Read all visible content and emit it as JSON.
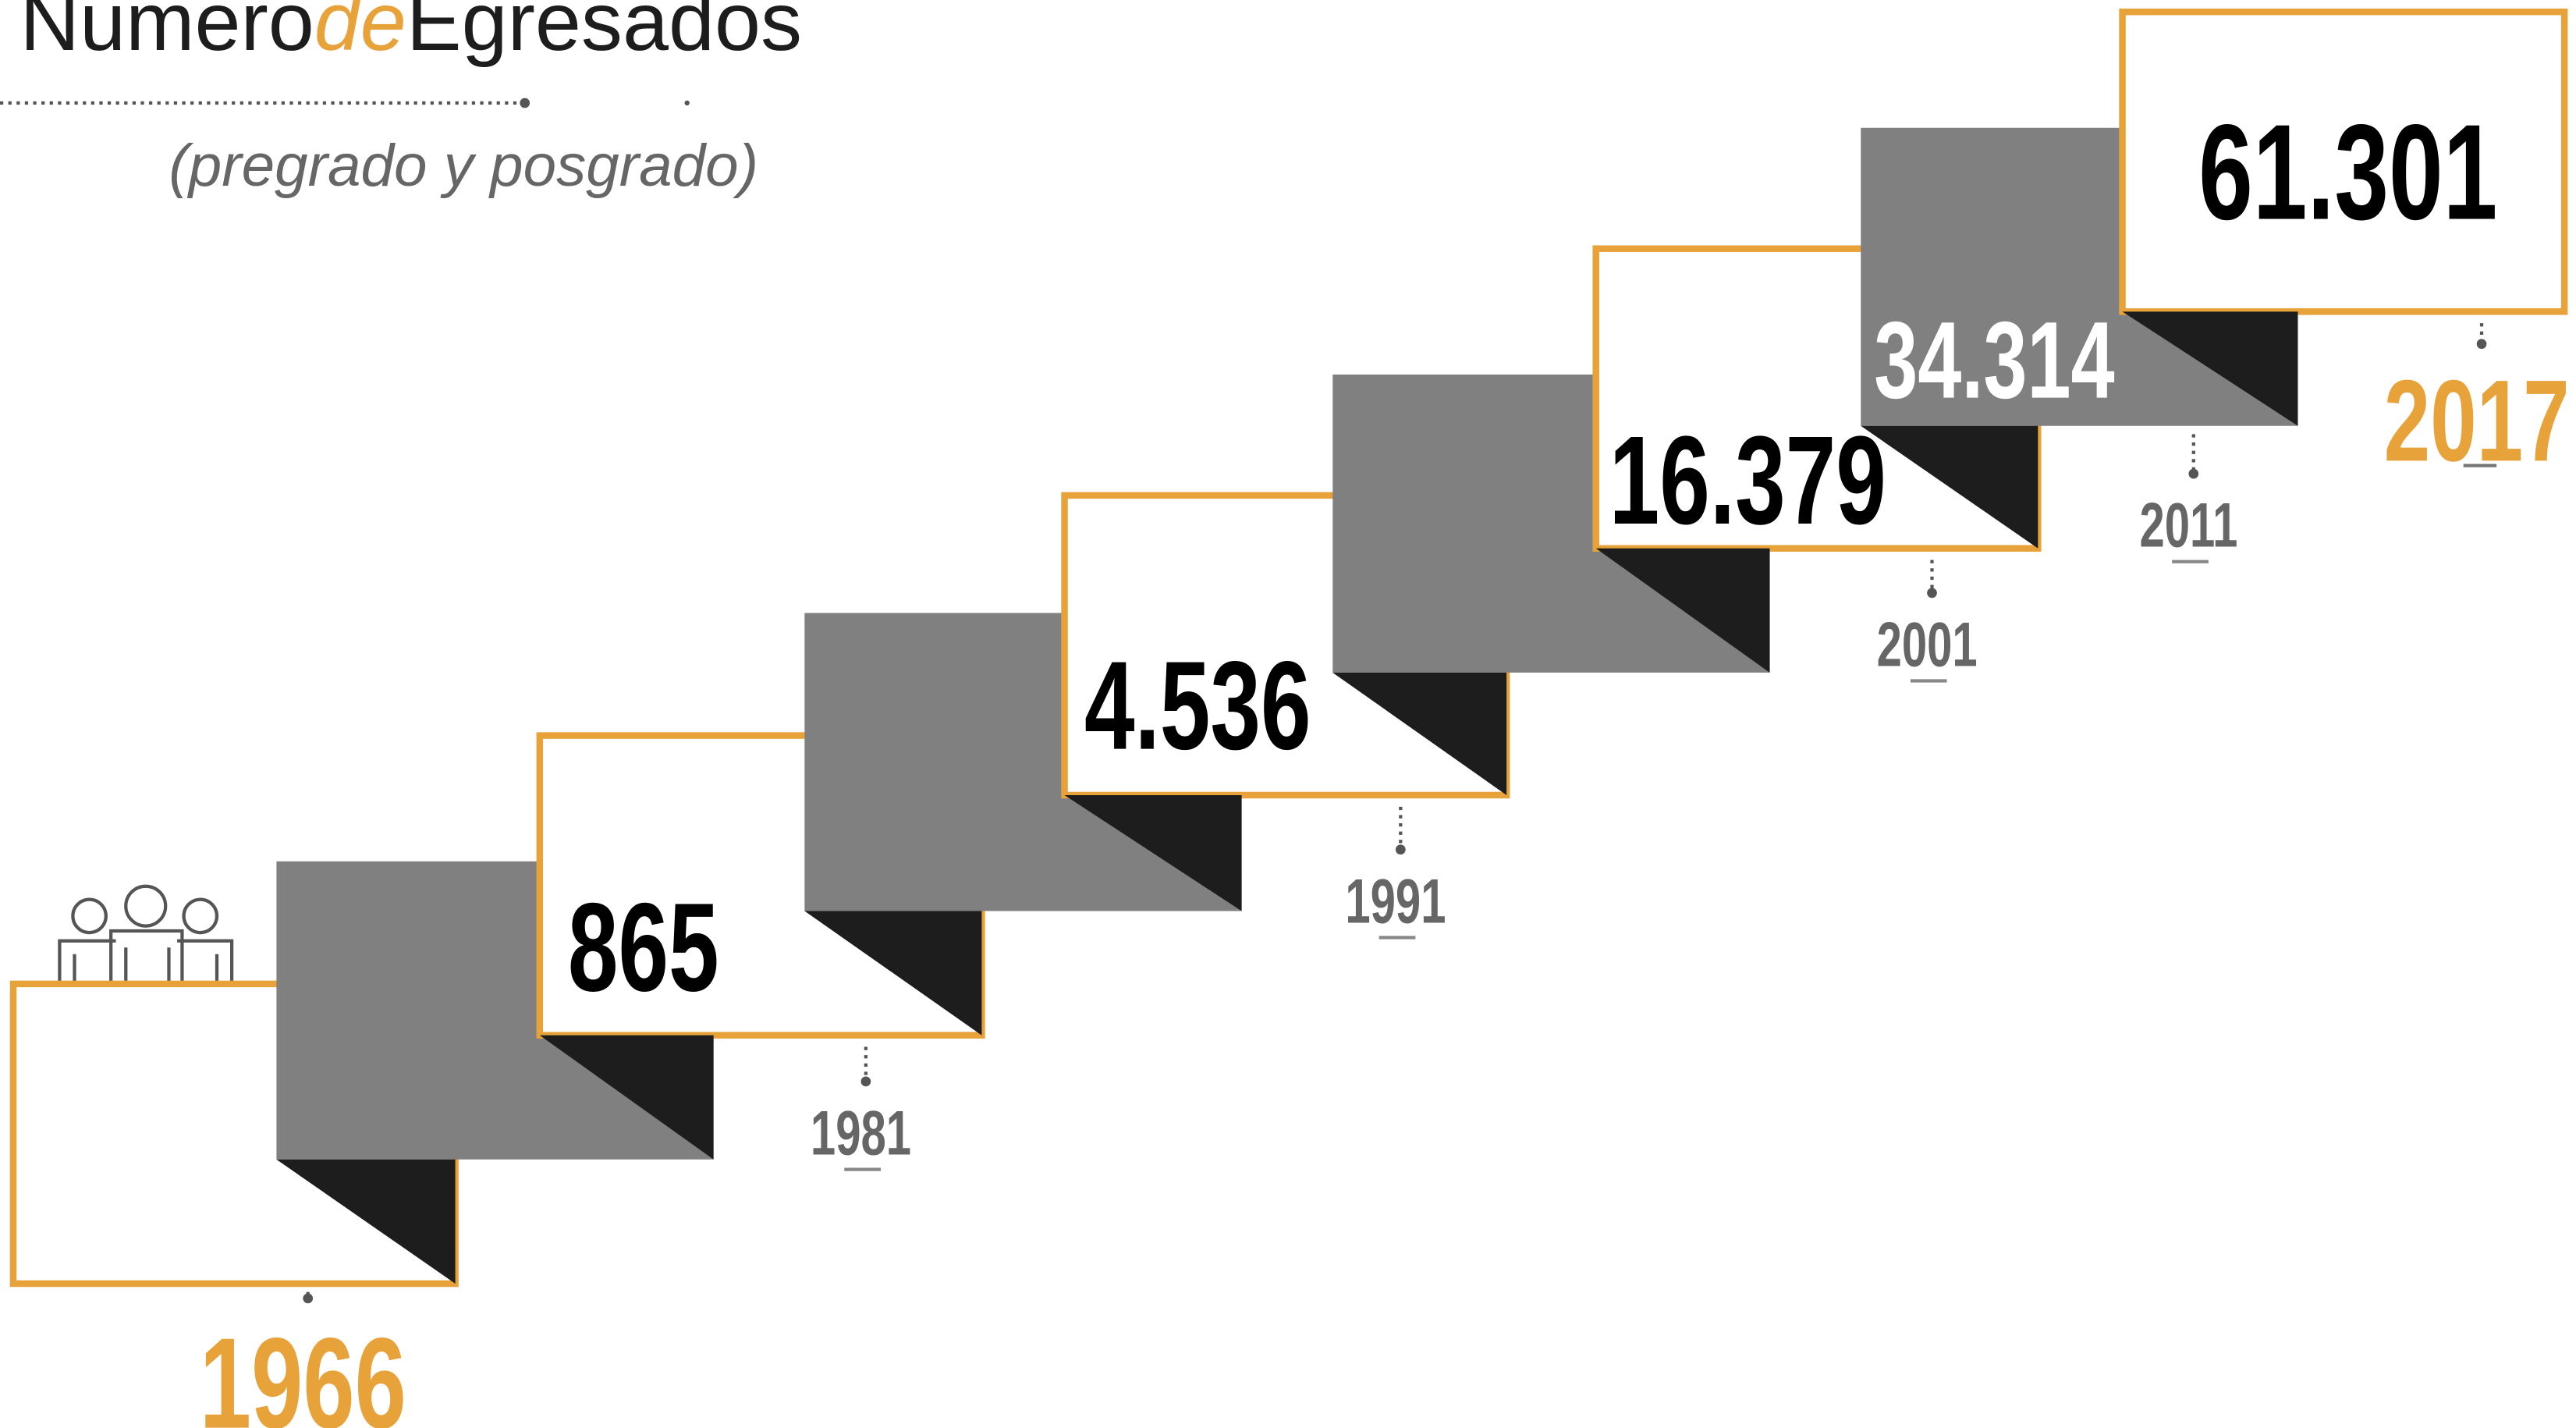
{
  "title": {
    "part1": "Numero",
    "part2": "de",
    "part3": "Egresados"
  },
  "subtitle": "(pregrado y posgrado)",
  "steps": [
    {
      "year": "1966"
    },
    {
      "year": "1981",
      "value": "865"
    },
    {
      "year": "1991",
      "value": "4.536"
    },
    {
      "year": "2001",
      "value": "16.379"
    },
    {
      "year": "2011",
      "value": "34.314"
    },
    {
      "year": "2017",
      "value": "61.301"
    }
  ]
}
